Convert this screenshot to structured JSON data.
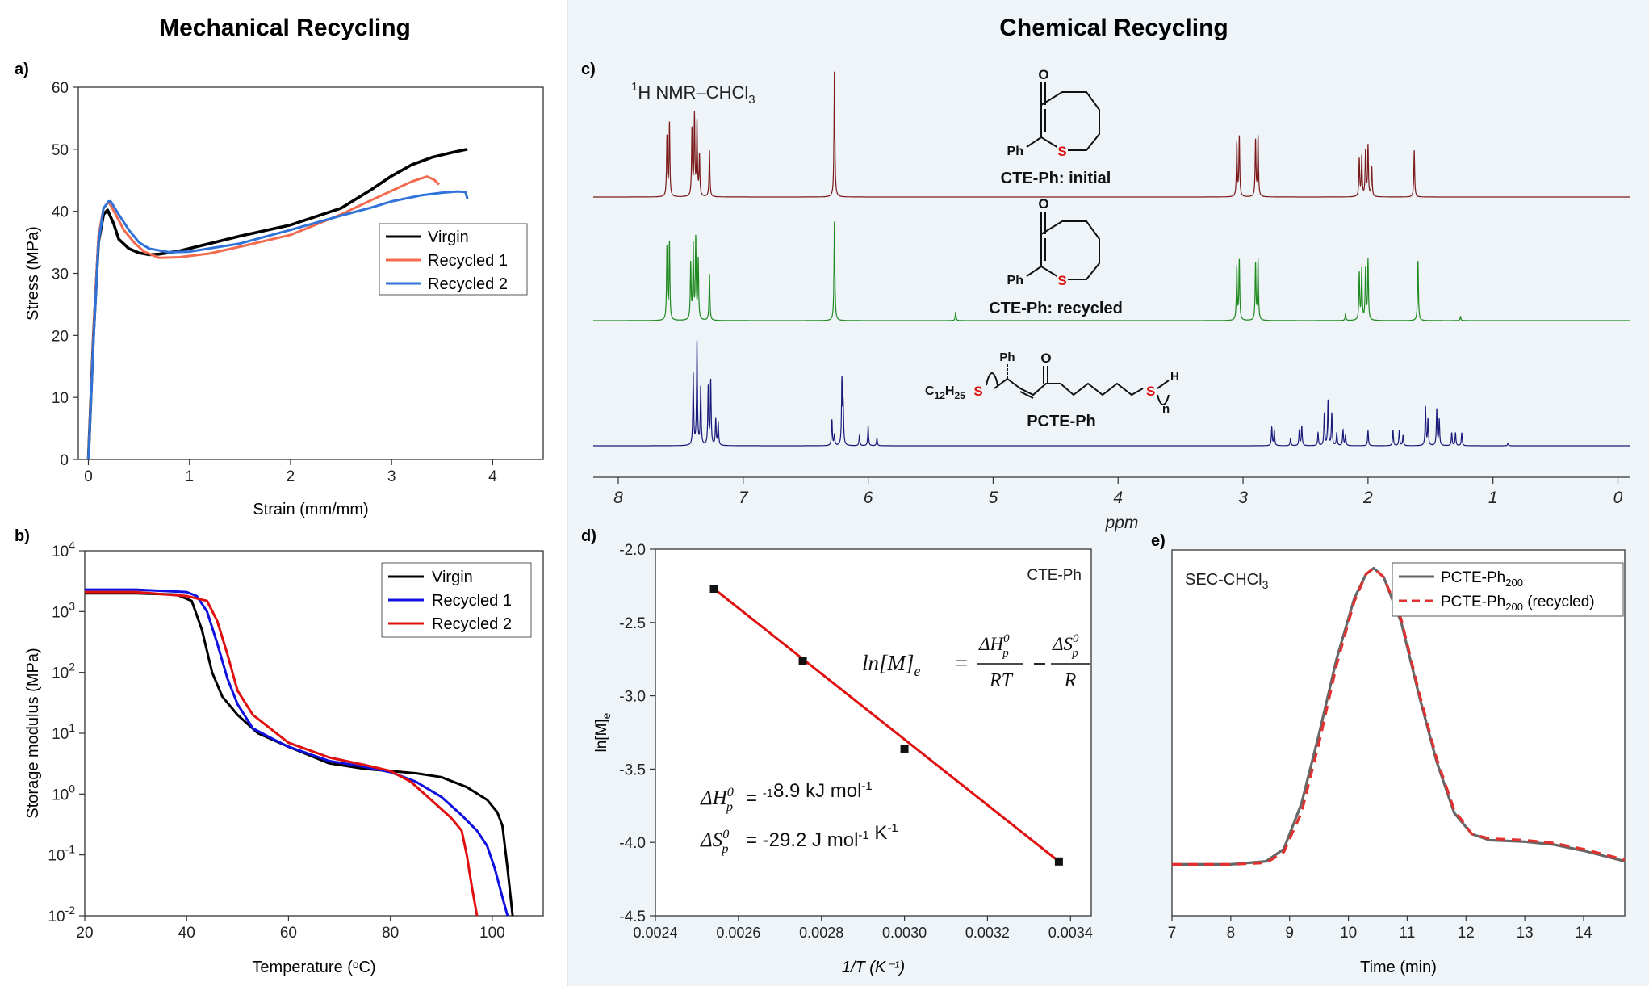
{
  "colors": {
    "left_bg": "#ffffff",
    "right_bg": "#eef4f8",
    "virgin_a": "#000000",
    "recycled1_a": "#f26b4f",
    "recycled2_a": "#2f73d9",
    "recycled1_b": "#1010e0",
    "recycled2_b": "#e01010",
    "nmr_initial": "#7b1a1a",
    "nmr_recycled": "#1f8a1f",
    "nmr_polymer": "#1a1a7a",
    "fit_line": "#e01010",
    "sec_main": "#666666",
    "sec_recycled": "#e03030",
    "sulfur": "#e01010"
  },
  "headings": {
    "left": "Mechanical Recycling",
    "right": "Chemical Recycling"
  },
  "chart_data": [
    {
      "panel": "a)",
      "type": "line",
      "xlabel": "Strain (mm/mm)",
      "ylabel": "Stress (MPa)",
      "xlim": [
        -0.1,
        4.5
      ],
      "ylim": [
        0,
        60
      ],
      "xticks": [
        "0",
        "1",
        "2",
        "3",
        "4"
      ],
      "yticks": [
        "0",
        "10",
        "20",
        "30",
        "40",
        "50",
        "60"
      ],
      "legend_position": "middle-right",
      "series": [
        {
          "name": "Virgin",
          "color_key": "virgin_a",
          "x": [
            0,
            0.05,
            0.1,
            0.15,
            0.19,
            0.25,
            0.3,
            0.4,
            0.5,
            0.6,
            0.7,
            0.9,
            1.2,
            1.5,
            2.0,
            2.5,
            2.8,
            3.0,
            3.2,
            3.4,
            3.6,
            3.75
          ],
          "y": [
            0,
            20,
            35,
            39.5,
            40.2,
            38,
            35.5,
            34,
            33.3,
            33,
            33.1,
            33.6,
            34.8,
            36,
            37.8,
            40.5,
            43.5,
            45.7,
            47.5,
            48.7,
            49.5,
            50
          ]
        },
        {
          "name": "Recycled 1",
          "color_key": "recycled1_a",
          "x": [
            0,
            0.05,
            0.1,
            0.15,
            0.2,
            0.27,
            0.35,
            0.45,
            0.55,
            0.7,
            0.9,
            1.2,
            1.5,
            2.0,
            2.5,
            2.8,
            3.0,
            3.2,
            3.35,
            3.42,
            3.47
          ],
          "y": [
            0,
            20,
            36,
            40.5,
            41.5,
            39.5,
            37,
            35,
            33.5,
            32.5,
            32.6,
            33.2,
            34.3,
            36.2,
            39.5,
            41.8,
            43.3,
            44.8,
            45.6,
            45.1,
            44.3
          ]
        },
        {
          "name": "Recycled 2",
          "color_key": "recycled2_a",
          "x": [
            0,
            0.05,
            0.1,
            0.15,
            0.2,
            0.22,
            0.3,
            0.4,
            0.5,
            0.6,
            0.8,
            1.0,
            1.5,
            2.0,
            2.5,
            2.8,
            3.0,
            3.3,
            3.5,
            3.65,
            3.73,
            3.75
          ],
          "y": [
            0,
            19,
            35,
            40.5,
            41.6,
            41.6,
            39.5,
            37,
            35,
            34,
            33.4,
            33.5,
            34.8,
            37,
            39.3,
            40.6,
            41.6,
            42.6,
            43,
            43.2,
            43.1,
            42
          ]
        }
      ]
    },
    {
      "panel": "b)",
      "type": "line",
      "xlabel": "Temperature (ᵒC)",
      "ylabel": "Storage modulus (MPa)",
      "xlim": [
        20,
        110
      ],
      "ylim_log10": [
        -2,
        4
      ],
      "yscale": "log",
      "xticks": [
        "20",
        "40",
        "60",
        "80",
        "100"
      ],
      "yticks": [
        "10-2",
        "10-1",
        "100",
        "101",
        "102",
        "103",
        "104"
      ],
      "legend_position": "top-right",
      "series": [
        {
          "name": "Virgin",
          "color_key": "virgin_a",
          "x": [
            20,
            30,
            38,
            41,
            43,
            45,
            47,
            50,
            54,
            60,
            68,
            75,
            80,
            85,
            90,
            95,
            99,
            101,
            102,
            103,
            104
          ],
          "y": [
            2000,
            2000,
            1900,
            1500,
            500,
            100,
            40,
            20,
            10,
            6,
            3.2,
            2.6,
            2.4,
            2.2,
            1.9,
            1.3,
            0.8,
            0.5,
            0.3,
            0.06,
            0.01
          ]
        },
        {
          "name": "Recycled 1",
          "color_key": "recycled1_b",
          "x": [
            20,
            30,
            40,
            42,
            44,
            46,
            48,
            50,
            53,
            57,
            60,
            68,
            75,
            80,
            85,
            90,
            94,
            97,
            99,
            100.5,
            102,
            103
          ],
          "y": [
            2300,
            2300,
            2100,
            1800,
            1000,
            300,
            80,
            30,
            12,
            8,
            6,
            3.5,
            2.8,
            2.3,
            1.6,
            0.9,
            0.45,
            0.25,
            0.14,
            0.06,
            0.02,
            0.01
          ]
        },
        {
          "name": "Recycled 2",
          "color_key": "recycled2_b",
          "x": [
            20,
            30,
            40,
            44,
            46,
            48,
            50,
            53,
            57,
            60,
            68,
            75,
            80,
            84,
            88,
            92,
            94,
            95,
            96,
            97
          ],
          "y": [
            2100,
            2100,
            1800,
            1500,
            700,
            200,
            50,
            20,
            11,
            7,
            4,
            3,
            2.4,
            1.6,
            0.8,
            0.4,
            0.25,
            0.1,
            0.03,
            0.01
          ]
        }
      ]
    },
    {
      "panel": "c)",
      "type": "line",
      "label": "1H NMR–CHCl3",
      "xlabel": "ppm",
      "xlim": [
        8.2,
        -0.1
      ],
      "xaxis": "reversed",
      "xticks": [
        "8",
        "7",
        "6",
        "5",
        "4",
        "3",
        "2",
        "1",
        "0"
      ],
      "series": [
        {
          "name": "CTE-Ph: initial",
          "color_key": "nmr_initial",
          "peaks": [
            [
              7.61,
              0.45
            ],
            [
              7.59,
              0.55
            ],
            [
              7.41,
              0.5
            ],
            [
              7.39,
              0.6
            ],
            [
              7.37,
              0.55
            ],
            [
              7.35,
              0.3
            ],
            [
              7.27,
              0.35
            ],
            [
              6.27,
              0.95
            ],
            [
              3.05,
              0.4
            ],
            [
              3.03,
              0.45
            ],
            [
              2.9,
              0.42
            ],
            [
              2.88,
              0.45
            ],
            [
              2.07,
              0.28
            ],
            [
              2.05,
              0.3
            ],
            [
              2.02,
              0.34
            ],
            [
              2.0,
              0.38
            ],
            [
              1.97,
              0.22
            ],
            [
              1.63,
              0.35
            ]
          ]
        },
        {
          "name": "CTE-Ph: recycled",
          "color_key": "nmr_recycled",
          "peaks": [
            [
              7.61,
              0.55
            ],
            [
              7.59,
              0.58
            ],
            [
              7.42,
              0.42
            ],
            [
              7.4,
              0.55
            ],
            [
              7.38,
              0.6
            ],
            [
              7.36,
              0.45
            ],
            [
              7.27,
              0.35
            ],
            [
              6.27,
              0.75
            ],
            [
              5.3,
              0.06
            ],
            [
              3.05,
              0.4
            ],
            [
              3.03,
              0.45
            ],
            [
              2.9,
              0.42
            ],
            [
              2.88,
              0.45
            ],
            [
              2.18,
              0.05
            ],
            [
              2.07,
              0.35
            ],
            [
              2.05,
              0.38
            ],
            [
              2.02,
              0.38
            ],
            [
              2.0,
              0.45
            ],
            [
              1.6,
              0.45
            ],
            [
              1.26,
              0.03
            ]
          ]
        },
        {
          "name": "PCTE-Ph",
          "color_key": "nmr_polymer",
          "peaks": [
            [
              7.4,
              0.55
            ],
            [
              7.37,
              0.8
            ],
            [
              7.34,
              0.45
            ],
            [
              7.28,
              0.45
            ],
            [
              7.26,
              0.5
            ],
            [
              7.22,
              0.2
            ],
            [
              7.2,
              0.18
            ],
            [
              6.29,
              0.2
            ],
            [
              6.27,
              0.08
            ],
            [
              6.21,
              0.5
            ],
            [
              6.2,
              0.3
            ],
            [
              6.07,
              0.08
            ],
            [
              6.0,
              0.15
            ],
            [
              5.93,
              0.06
            ],
            [
              2.77,
              0.14
            ],
            [
              2.75,
              0.12
            ],
            [
              2.62,
              0.06
            ],
            [
              2.55,
              0.12
            ],
            [
              2.53,
              0.15
            ],
            [
              2.4,
              0.1
            ],
            [
              2.35,
              0.25
            ],
            [
              2.32,
              0.35
            ],
            [
              2.29,
              0.25
            ],
            [
              2.25,
              0.1
            ],
            [
              2.2,
              0.12
            ],
            [
              2.18,
              0.08
            ],
            [
              2.0,
              0.12
            ],
            [
              1.8,
              0.12
            ],
            [
              1.75,
              0.12
            ],
            [
              1.72,
              0.08
            ],
            [
              1.54,
              0.3
            ],
            [
              1.52,
              0.2
            ],
            [
              1.45,
              0.28
            ],
            [
              1.43,
              0.2
            ],
            [
              1.33,
              0.1
            ],
            [
              1.3,
              0.1
            ],
            [
              1.25,
              0.1
            ],
            [
              0.88,
              0.02
            ]
          ]
        }
      ]
    },
    {
      "panel": "d)",
      "type": "scatter",
      "annotation": "CTE-Ph",
      "xlabel": "1/T (K⁻¹)",
      "ylabel": "ln[M]e",
      "xlim": [
        0.0024,
        0.00345
      ],
      "ylim": [
        -4.5,
        -2.0
      ],
      "xticks": [
        "0.0024",
        "0.0026",
        "0.0028",
        "0.0030",
        "0.0032",
        "0.0034"
      ],
      "yticks": [
        "-2.0",
        "-2.5",
        "-3.0",
        "-3.5",
        "-4.0",
        "-4.5"
      ],
      "x": [
        0.002541,
        0.002755,
        0.003,
        0.003372
      ],
      "y": [
        -2.27,
        -2.76,
        -3.36,
        -4.13
      ],
      "fit": {
        "x": [
          0.002541,
          0.003372
        ],
        "y": [
          -2.27,
          -4.13
        ]
      },
      "equation_lhs": "ln[M]e",
      "equation_num1": "ΔHp0",
      "equation_den1": "RT",
      "equation_num2": "ΔSp0",
      "equation_den2": "R",
      "dh_label": "ΔHp0",
      "dh_value": " = -18.9 kJ mol-1",
      "ds_label": "ΔSp0",
      "ds_value": " = -29.2 J mol-1 K-1"
    },
    {
      "panel": "e)",
      "type": "line",
      "label": "SEC-CHCl3",
      "xlabel": "Time (min)",
      "xlim": [
        7,
        14.7
      ],
      "xticks": [
        "7",
        "8",
        "9",
        "10",
        "11",
        "12",
        "13",
        "14"
      ],
      "legend_position": "top-right",
      "series": [
        {
          "name": "PCTE-Ph200",
          "color_key": "sec_main",
          "x": [
            7,
            8,
            8.6,
            8.9,
            9.2,
            9.5,
            9.8,
            10.1,
            10.3,
            10.43,
            10.6,
            10.9,
            11.2,
            11.5,
            11.8,
            12.1,
            12.4,
            13,
            13.5,
            14,
            14.4,
            14.7
          ],
          "y": [
            0.02,
            0.02,
            0.03,
            0.07,
            0.22,
            0.45,
            0.7,
            0.9,
            0.98,
            1.0,
            0.97,
            0.82,
            0.58,
            0.36,
            0.19,
            0.12,
            0.1,
            0.095,
            0.085,
            0.065,
            0.045,
            0.03
          ]
        },
        {
          "name": "PCTE-Ph200 (recycled)",
          "color_key": "sec_recycled",
          "x": [
            7,
            8,
            8.6,
            8.9,
            9.2,
            9.5,
            9.8,
            10.1,
            10.3,
            10.43,
            10.6,
            10.9,
            11.2,
            11.5,
            11.8,
            12.1,
            12.4,
            13,
            13.5,
            14,
            14.4,
            14.7
          ],
          "y": [
            0.02,
            0.02,
            0.025,
            0.06,
            0.19,
            0.42,
            0.68,
            0.89,
            0.98,
            1.0,
            0.97,
            0.83,
            0.59,
            0.37,
            0.2,
            0.12,
            0.105,
            0.1,
            0.09,
            0.07,
            0.05,
            0.035
          ]
        }
      ]
    }
  ],
  "structures": {
    "initial": {
      "substituent": "Ph",
      "heteroatom": "S",
      "carbonyl": "O",
      "caption": "CTE-Ph: initial"
    },
    "recycled": {
      "substituent": "Ph",
      "heteroatom": "S",
      "carbonyl": "O",
      "caption": "CTE-Ph: recycled"
    },
    "polymer": {
      "endgroup": "C12H25",
      "substituent": "Ph",
      "heteroatom": "S",
      "carbonyl": "O",
      "end_h": "H",
      "repeat": "n",
      "caption": "PCTE-Ph"
    }
  }
}
